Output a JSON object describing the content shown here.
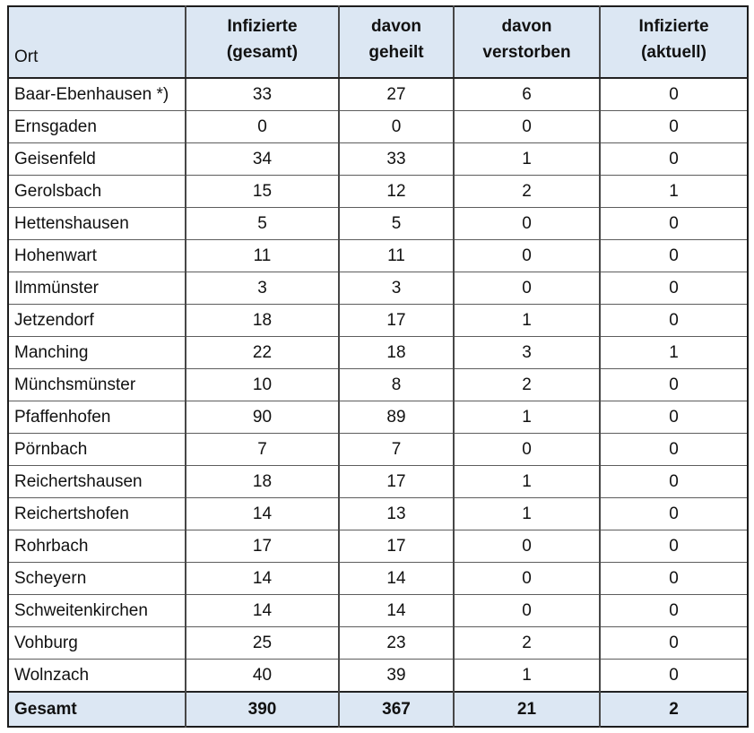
{
  "colors": {
    "header_bg": "#dce7f3",
    "outer_border": "#1c1c1c",
    "inner_border": "#5d5d5d",
    "text": "#111111"
  },
  "table": {
    "columns": {
      "ort": "Ort",
      "gesamt_line1": "Infizierte",
      "gesamt_line2": "(gesamt)",
      "geheilt_line1": "davon",
      "geheilt_line2": "geheilt",
      "verstorben_line1": "davon",
      "verstorben_line2": "verstorben",
      "aktuell_line1": "Infizierte",
      "aktuell_line2": "(aktuell)"
    },
    "rows": [
      {
        "ort": "Baar-Ebenhausen *)",
        "gesamt": 33,
        "geheilt": 27,
        "verstorben": 6,
        "aktuell": 0
      },
      {
        "ort": "Ernsgaden",
        "gesamt": 0,
        "geheilt": 0,
        "verstorben": 0,
        "aktuell": 0
      },
      {
        "ort": "Geisenfeld",
        "gesamt": 34,
        "geheilt": 33,
        "verstorben": 1,
        "aktuell": 0
      },
      {
        "ort": "Gerolsbach",
        "gesamt": 15,
        "geheilt": 12,
        "verstorben": 2,
        "aktuell": 1
      },
      {
        "ort": "Hettenshausen",
        "gesamt": 5,
        "geheilt": 5,
        "verstorben": 0,
        "aktuell": 0
      },
      {
        "ort": "Hohenwart",
        "gesamt": 11,
        "geheilt": 11,
        "verstorben": 0,
        "aktuell": 0
      },
      {
        "ort": "Ilmmünster",
        "gesamt": 3,
        "geheilt": 3,
        "verstorben": 0,
        "aktuell": 0
      },
      {
        "ort": "Jetzendorf",
        "gesamt": 18,
        "geheilt": 17,
        "verstorben": 1,
        "aktuell": 0
      },
      {
        "ort": "Manching",
        "gesamt": 22,
        "geheilt": 18,
        "verstorben": 3,
        "aktuell": 1
      },
      {
        "ort": "Münchsmünster",
        "gesamt": 10,
        "geheilt": 8,
        "verstorben": 2,
        "aktuell": 0
      },
      {
        "ort": "Pfaffenhofen",
        "gesamt": 90,
        "geheilt": 89,
        "verstorben": 1,
        "aktuell": 0
      },
      {
        "ort": "Pörnbach",
        "gesamt": 7,
        "geheilt": 7,
        "verstorben": 0,
        "aktuell": 0
      },
      {
        "ort": "Reichertshausen",
        "gesamt": 18,
        "geheilt": 17,
        "verstorben": 1,
        "aktuell": 0
      },
      {
        "ort": "Reichertshofen",
        "gesamt": 14,
        "geheilt": 13,
        "verstorben": 1,
        "aktuell": 0
      },
      {
        "ort": "Rohrbach",
        "gesamt": 17,
        "geheilt": 17,
        "verstorben": 0,
        "aktuell": 0
      },
      {
        "ort": "Scheyern",
        "gesamt": 14,
        "geheilt": 14,
        "verstorben": 0,
        "aktuell": 0
      },
      {
        "ort": "Schweitenkirchen",
        "gesamt": 14,
        "geheilt": 14,
        "verstorben": 0,
        "aktuell": 0
      },
      {
        "ort": "Vohburg",
        "gesamt": 25,
        "geheilt": 23,
        "verstorben": 2,
        "aktuell": 0
      },
      {
        "ort": "Wolnzach",
        "gesamt": 40,
        "geheilt": 39,
        "verstorben": 1,
        "aktuell": 0
      }
    ],
    "footer": {
      "ort": "Gesamt",
      "gesamt": 390,
      "geheilt": 367,
      "verstorben": 21,
      "aktuell": 2
    }
  }
}
